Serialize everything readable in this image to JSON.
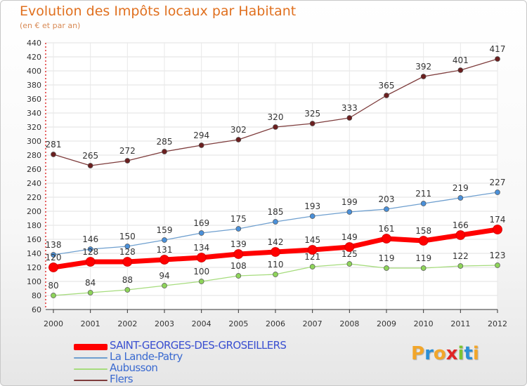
{
  "title": "Evolution des Impôts locaux par Habitant",
  "subtitle": "(en € et par an)",
  "logo": {
    "letters": [
      "P",
      "r",
      "o",
      "x",
      "i",
      "t",
      "i"
    ],
    "colors": [
      "#f2a62a",
      "#2a8fd6",
      "#f2a62a",
      "#e02525",
      "#7cc433",
      "#2a8fd6",
      "#f2a62a"
    ]
  },
  "chart_data": {
    "type": "line",
    "title": "Evolution des Impôts locaux par Habitant",
    "subtitle": "(en € et par an)",
    "x": [
      "2000",
      "2001",
      "2002",
      "2003",
      "2004",
      "2005",
      "2006",
      "2007",
      "2008",
      "2009",
      "2010",
      "2011",
      "2012"
    ],
    "ylim": [
      60,
      440
    ],
    "yticks": [
      60,
      80,
      100,
      120,
      140,
      160,
      180,
      200,
      220,
      240,
      260,
      280,
      300,
      320,
      340,
      360,
      380,
      400,
      420,
      440
    ],
    "grid": true,
    "legend_position": "bottom-left",
    "series": [
      {
        "name": "SAINT-GEORGES-DES-GROSEILLERS",
        "color": "#ff0000",
        "marker": "#ff0000",
        "values": [
          120,
          128,
          128,
          131,
          134,
          139,
          142,
          145,
          149,
          161,
          158,
          166,
          174
        ],
        "highlight": true
      },
      {
        "name": "La Lande-Patry",
        "color": "#6e9fcf",
        "marker": "#4a90d9",
        "values": [
          138,
          146,
          150,
          159,
          169,
          175,
          185,
          193,
          199,
          203,
          211,
          219,
          227
        ]
      },
      {
        "name": "Aubusson",
        "color": "#a6dc7d",
        "marker": "#8ed45a",
        "values": [
          80,
          84,
          88,
          94,
          100,
          108,
          110,
          121,
          125,
          119,
          119,
          122,
          123
        ]
      },
      {
        "name": "Flers",
        "color": "#7e3c3c",
        "marker": "#6b1f1f",
        "values": [
          281,
          265,
          272,
          285,
          294,
          302,
          320,
          325,
          333,
          365,
          392,
          401,
          417
        ]
      }
    ]
  }
}
